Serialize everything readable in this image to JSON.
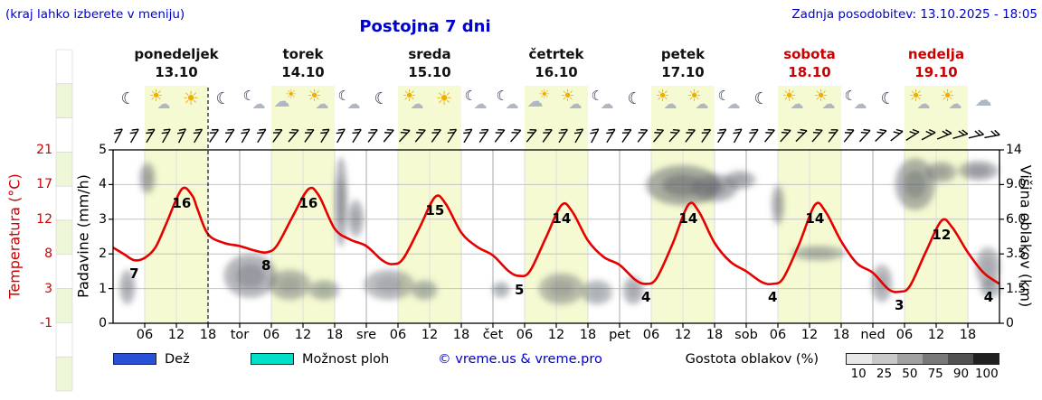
{
  "header": {
    "hint": "(kraj lahko izberete v meniju)",
    "title": "Postojna 7 dni",
    "updated": "Zadnja posodobitev: 13.10.2025 - 18:05"
  },
  "days": [
    {
      "name": "ponedeljek",
      "date": "13.10",
      "weekend": false,
      "icons": [
        "moon",
        "sun-cloud",
        "sun",
        "moon"
      ]
    },
    {
      "name": "torek",
      "date": "14.10",
      "weekend": false,
      "icons": [
        "moon-cloud",
        "cloud-sun",
        "sun-cloud",
        "moon-cloud"
      ]
    },
    {
      "name": "sreda",
      "date": "15.10",
      "weekend": false,
      "icons": [
        "moon",
        "sun-cloud",
        "sun",
        "moon-cloud"
      ]
    },
    {
      "name": "četrtek",
      "date": "16.10",
      "weekend": false,
      "icons": [
        "moon-cloud",
        "cloud-sun",
        "sun-cloud",
        "moon-cloud"
      ]
    },
    {
      "name": "petek",
      "date": "17.10",
      "weekend": false,
      "icons": [
        "moon",
        "sun-cloud",
        "sun-cloud",
        "moon-cloud"
      ]
    },
    {
      "name": "sobota",
      "date": "18.10",
      "weekend": true,
      "icons": [
        "moon",
        "sun-cloud",
        "sun-cloud",
        "moon-cloud"
      ]
    },
    {
      "name": "nedelja",
      "date": "19.10",
      "weekend": true,
      "icons": [
        "moon",
        "sun-cloud",
        "sun-cloud",
        "cloud"
      ]
    }
  ],
  "axes": {
    "temp_label": "Temperatura (°C)",
    "temp_ticks": [
      "21",
      "17",
      "12",
      "8",
      "3",
      "-1"
    ],
    "precip_label": "Padavine (mm/h)",
    "precip_ticks": [
      "5",
      "4",
      "3",
      "2",
      "1",
      "0"
    ],
    "cloud_label": "Višina oblakov (km)",
    "cloud_ticks": [
      "14",
      "9.0",
      "6.0",
      "3.5",
      "1.5",
      "0"
    ]
  },
  "xaxis": {
    "items": [
      {
        "h": 6,
        "label": "06"
      },
      {
        "h": 12,
        "label": "12"
      },
      {
        "h": 18,
        "label": "18"
      },
      {
        "h": 24,
        "label": "tor"
      },
      {
        "h": 30,
        "label": "06"
      },
      {
        "h": 36,
        "label": "12"
      },
      {
        "h": 42,
        "label": "18"
      },
      {
        "h": 48,
        "label": "sre"
      },
      {
        "h": 54,
        "label": "06"
      },
      {
        "h": 60,
        "label": "12"
      },
      {
        "h": 66,
        "label": "18"
      },
      {
        "h": 72,
        "label": "čet"
      },
      {
        "h": 78,
        "label": "06"
      },
      {
        "h": 84,
        "label": "12"
      },
      {
        "h": 90,
        "label": "18"
      },
      {
        "h": 96,
        "label": "pet"
      },
      {
        "h": 102,
        "label": "06"
      },
      {
        "h": 108,
        "label": "12"
      },
      {
        "h": 114,
        "label": "18"
      },
      {
        "h": 120,
        "label": "sob"
      },
      {
        "h": 126,
        "label": "06"
      },
      {
        "h": 132,
        "label": "12"
      },
      {
        "h": 138,
        "label": "18"
      },
      {
        "h": 144,
        "label": "ned"
      },
      {
        "h": 150,
        "label": "06"
      },
      {
        "h": 156,
        "label": "12"
      },
      {
        "h": 162,
        "label": "18"
      }
    ]
  },
  "legend": {
    "rain_label": "Dež",
    "showers_label": "Možnost ploh",
    "copyright": "© vreme.us & vreme.pro",
    "density_label": "Gostota oblakov (%)",
    "density_ticks": [
      "10",
      "25",
      "50",
      "75",
      "90",
      "100"
    ]
  },
  "colors": {
    "link": "#0000cd",
    "temp_axis": "#cc0000",
    "day_band": "#f5fad2",
    "rain": "#2851d8",
    "showers": "#00dfc8",
    "density_scale": [
      "#e8e8e8",
      "#c8c8c8",
      "#a0a0a0",
      "#787878",
      "#505050",
      "#202020"
    ],
    "strip_cells": [
      "#ffffff",
      "#edf6d6"
    ]
  },
  "now_hour": 18,
  "chart_data": {
    "type": "line",
    "title": "Postojna 7 dni",
    "x_unit": "hour (0 = ponedeljek 13.10 00:00)",
    "ylabel_left": "Temperatura (°C) / Padavine (mm/h)",
    "ylabel_right": "Višina oblakov (km)",
    "temp_range": [
      -1,
      21
    ],
    "precip_range": [
      0,
      5
    ],
    "cloud_km_ticks": [
      0,
      1.5,
      3.5,
      6,
      9,
      14
    ],
    "series": [
      {
        "name": "Temperatura",
        "color": "#e60000",
        "points": [
          [
            0,
            8.6
          ],
          [
            2,
            7.8
          ],
          [
            4,
            7
          ],
          [
            6,
            7.3
          ],
          [
            8,
            8.6
          ],
          [
            10,
            11.5
          ],
          [
            13,
            16
          ],
          [
            15,
            15.2
          ],
          [
            16,
            13.5
          ],
          [
            18,
            10.3
          ],
          [
            21,
            9.2
          ],
          [
            24,
            8.8
          ],
          [
            27,
            8.2
          ],
          [
            29,
            8
          ],
          [
            31,
            8.8
          ],
          [
            34,
            12.5
          ],
          [
            37,
            16
          ],
          [
            39,
            15.2
          ],
          [
            42,
            11
          ],
          [
            45,
            9.6
          ],
          [
            48,
            8.8
          ],
          [
            51,
            7
          ],
          [
            53,
            6.5
          ],
          [
            55,
            7.2
          ],
          [
            58,
            11
          ],
          [
            61,
            15
          ],
          [
            63,
            14.2
          ],
          [
            66,
            10.5
          ],
          [
            69,
            8.7
          ],
          [
            72,
            7.6
          ],
          [
            75,
            5.6
          ],
          [
            77,
            5
          ],
          [
            79,
            5.6
          ],
          [
            82,
            9.8
          ],
          [
            85,
            14
          ],
          [
            87,
            13.2
          ],
          [
            90,
            9.5
          ],
          [
            93,
            7.4
          ],
          [
            96,
            6.4
          ],
          [
            99,
            4.5
          ],
          [
            101,
            4
          ],
          [
            103,
            4.7
          ],
          [
            106,
            9
          ],
          [
            109,
            14
          ],
          [
            111,
            13.2
          ],
          [
            114,
            9.2
          ],
          [
            117,
            6.8
          ],
          [
            120,
            5.6
          ],
          [
            123,
            4.2
          ],
          [
            125,
            4
          ],
          [
            127,
            4.7
          ],
          [
            130,
            9
          ],
          [
            133,
            14
          ],
          [
            135,
            13.2
          ],
          [
            138,
            9.4
          ],
          [
            141,
            6.6
          ],
          [
            144,
            5.4
          ],
          [
            147,
            3.3
          ],
          [
            149,
            3
          ],
          [
            151,
            3.7
          ],
          [
            154,
            8
          ],
          [
            157,
            12
          ],
          [
            159,
            11.2
          ],
          [
            162,
            8
          ],
          [
            165,
            5.4
          ],
          [
            168,
            4
          ]
        ]
      }
    ],
    "extremes": [
      {
        "h": 4,
        "v": 7
      },
      {
        "h": 13,
        "v": 16
      },
      {
        "h": 29,
        "v": 8
      },
      {
        "h": 37,
        "v": 16
      },
      {
        "h": 61,
        "v": 15
      },
      {
        "h": 77,
        "v": 5
      },
      {
        "h": 85,
        "v": 14
      },
      {
        "h": 101,
        "v": 4
      },
      {
        "h": 109,
        "v": 14
      },
      {
        "h": 125,
        "v": 4
      },
      {
        "h": 133,
        "v": 14
      },
      {
        "h": 149,
        "v": 3
      },
      {
        "h": 157,
        "v": 12
      },
      {
        "h": 168,
        "v": 4,
        "dx": -12
      }
    ],
    "clouds": [
      {
        "h": 6.5,
        "km": 10.2,
        "rh": 1.5,
        "rkm": 2.0,
        "d": 0.35
      },
      {
        "h": 2.7,
        "km": 1.7,
        "rh": 1.5,
        "rkm": 0.9,
        "d": 0.3
      },
      {
        "h": 26,
        "km": 2.3,
        "rh": 5,
        "rkm": 1.2,
        "d": 0.45
      },
      {
        "h": 33.5,
        "km": 1.8,
        "rh": 4,
        "rkm": 0.8,
        "d": 0.3
      },
      {
        "h": 40,
        "km": 1.5,
        "rh": 3,
        "rkm": 0.5,
        "d": 0.25
      },
      {
        "h": 43.2,
        "km": 8.5,
        "rh": 1.2,
        "rkm": 4.5,
        "d": 0.5
      },
      {
        "h": 46,
        "km": 6.2,
        "rh": 1.5,
        "rkm": 1.5,
        "d": 0.35
      },
      {
        "h": 52.3,
        "km": 1.8,
        "rh": 4.8,
        "rkm": 0.8,
        "d": 0.3
      },
      {
        "h": 59,
        "km": 1.5,
        "rh": 2.5,
        "rkm": 0.5,
        "d": 0.25
      },
      {
        "h": 73.5,
        "km": 1.5,
        "rh": 1.7,
        "rkm": 0.4,
        "d": 0.25
      },
      {
        "h": 85,
        "km": 1.6,
        "rh": 4.3,
        "rkm": 0.8,
        "d": 0.3
      },
      {
        "h": 91.7,
        "km": 1.4,
        "rh": 3,
        "rkm": 0.6,
        "d": 0.25
      },
      {
        "h": 98.6,
        "km": 1.5,
        "rh": 2,
        "rkm": 0.7,
        "d": 0.3
      },
      {
        "h": 108,
        "km": 9.5,
        "rh": 7,
        "rkm": 2.3,
        "d": 0.6
      },
      {
        "h": 114,
        "km": 9.0,
        "rh": 4.3,
        "rkm": 1.5,
        "d": 0.45
      },
      {
        "h": 118.8,
        "km": 9.8,
        "rh": 3,
        "rkm": 1.2,
        "d": 0.35
      },
      {
        "h": 126,
        "km": 7.3,
        "rh": 1.2,
        "rkm": 1.7,
        "d": 0.35
      },
      {
        "h": 133.7,
        "km": 3.6,
        "rh": 5.1,
        "rkm": 0.5,
        "d": 0.25
      },
      {
        "h": 145.7,
        "km": 1.9,
        "rh": 2,
        "rkm": 1.0,
        "d": 0.3
      },
      {
        "h": 152,
        "km": 9.8,
        "rh": 3.8,
        "rkm": 3.0,
        "d": 0.5
      },
      {
        "h": 156.9,
        "km": 10.8,
        "rh": 3,
        "rkm": 1.5,
        "d": 0.35
      },
      {
        "h": 164,
        "km": 11,
        "rh": 3.8,
        "rkm": 1.4,
        "d": 0.45
      },
      {
        "h": 165.8,
        "km": 2.8,
        "rh": 2.4,
        "rkm": 1.2,
        "d": 0.3
      },
      {
        "h": 166.3,
        "km": 1.6,
        "rh": 2,
        "rkm": 0.5,
        "d": 0.25
      }
    ],
    "wind_barbs": [
      -62,
      -60,
      -58,
      -60,
      -63,
      -59,
      -55,
      -57,
      -60,
      -58,
      -54,
      -50,
      -54,
      -58,
      -60,
      -57,
      -54,
      -50,
      -47,
      -50,
      -54,
      -57,
      -59,
      -56,
      -52,
      -49,
      -51,
      -54,
      -57,
      -60,
      -62,
      -58,
      -55,
      -52,
      -50,
      -48,
      -52,
      -55,
      -58,
      -60,
      -56,
      -51,
      -48,
      -45,
      -49,
      -53,
      -51,
      -47,
      -44,
      -38,
      -33,
      -28,
      -22,
      -17,
      -13,
      -10
    ]
  }
}
